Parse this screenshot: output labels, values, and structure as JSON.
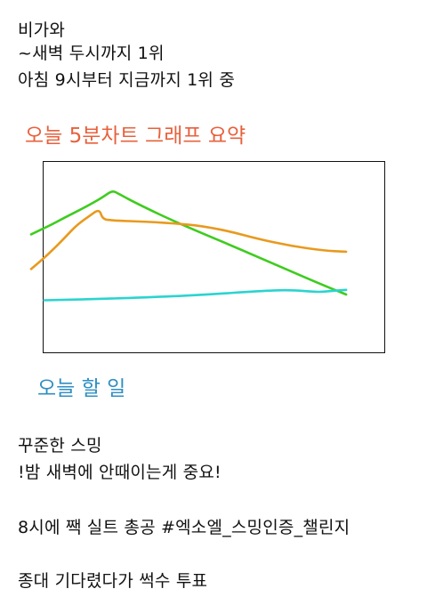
{
  "intro": {
    "lines": [
      "비가와",
      "~새벽 두시까지 1위",
      "아침 9시부터 지금까지 1위 중"
    ]
  },
  "chart_section": {
    "title": "오늘 5분차트 그래프 요약",
    "title_color": "#e8603c"
  },
  "chart_data": {
    "type": "line",
    "title": "",
    "xlabel": "",
    "ylabel": "",
    "xlim": [
      0,
      100
    ],
    "ylim": [
      0,
      100
    ],
    "grid": false,
    "legend": "none",
    "series": [
      {
        "color": "#3fcc1f",
        "x": [
          0,
          6,
          10,
          17,
          22,
          25,
          27,
          33,
          45,
          62,
          80,
          90,
          97
        ],
        "y": [
          62,
          70,
          76,
          86,
          94,
          100,
          97,
          88,
          72,
          52,
          30,
          18,
          10
        ]
      },
      {
        "color": "#e89a1e",
        "x": [
          0,
          5,
          10,
          14,
          18,
          21,
          22,
          25,
          35,
          47,
          55,
          62,
          70,
          80,
          90,
          97
        ],
        "y": [
          32,
          44,
          58,
          70,
          78,
          84,
          75,
          74,
          73,
          71,
          68,
          64,
          58,
          52,
          48,
          47
        ]
      },
      {
        "color": "#2bd4cf",
        "x": [
          4,
          20,
          40,
          55,
          70,
          80,
          88,
          92,
          97
        ],
        "y": [
          5,
          6,
          8,
          10,
          13,
          14,
          12,
          13,
          14
        ]
      }
    ]
  },
  "todo_section": {
    "title": "오늘 할 일",
    "title_color": "#2f8fc2"
  },
  "todo": {
    "lines": [
      "꾸준한 스밍",
      "!밤 새벽에 안때이는게 중요!",
      "",
      "8시에 짹 실트 총공 #엑소엘_스밍인증_챌린지",
      "",
      "종대 기다렸다가 썩수 투표"
    ]
  }
}
